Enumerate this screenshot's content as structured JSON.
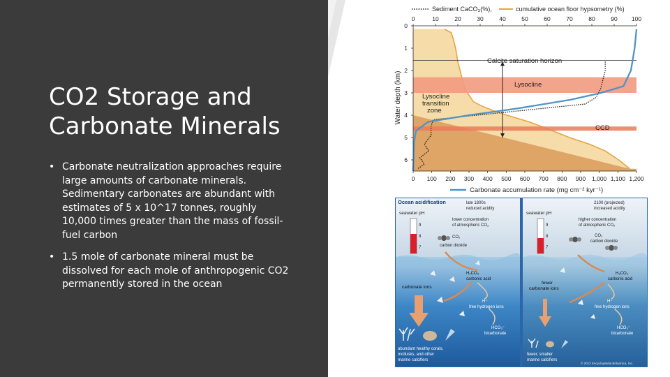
{
  "slide": {
    "title_line1": "CO2 Storage and",
    "title_line2": "Carbonate Minerals",
    "bullets": [
      {
        "marker": "•",
        "text": "Carbonate neutralization approaches require large amounts of carbonate minerals. Sedimentary carbonates are abundant with estimates of 5 x 10^17 tonnes, roughly 10,000 times greater than the mass of fossil-fuel carbon"
      },
      {
        "marker": "•",
        "text": "1.5 mole of carbonate mineral must be dissolved for each mole of anthropogenic CO2 permanently stored in the ocean"
      }
    ]
  },
  "colors": {
    "panel": "#3b3b3b",
    "band": "#e8e8e8",
    "orange_area": "#dfa566",
    "light_area": "#f9e5b5",
    "lysocline": "#f29a80",
    "ccd": "#ec7a5a",
    "blue_line": "#4f94c7"
  },
  "chart_data": {
    "type": "area",
    "legend": {
      "sediment": "Sediment CaCO₃(%),",
      "hypsometry": "cumulative ocean floor hypsometry (%)"
    },
    "top_axis": {
      "ticks": [
        "0",
        "10",
        "20",
        "30",
        "40",
        "50",
        "60",
        "70",
        "80",
        "90",
        "100"
      ]
    },
    "bottom_axis": {
      "ticks": [
        "0",
        "100",
        "200",
        "300",
        "400",
        "500",
        "600",
        "700",
        "800",
        "900",
        "1,000",
        "1,100",
        "1,200"
      ],
      "label": "Carbonate accumulation rate (mg cm⁻² kyr⁻¹)"
    },
    "y_axis": {
      "label": "Water depth (km)",
      "ticks": [
        "0",
        "1",
        "2",
        "3",
        "4",
        "5",
        "6"
      ],
      "range": [
        0,
        6.5
      ]
    },
    "labels": {
      "saturation": "Calcite saturation horizon",
      "lysocline": "Lysocline",
      "transition_1": "Lysocline",
      "transition_2": "transition",
      "transition_3": "zone",
      "ccd": "CCD"
    },
    "zones": {
      "lysocline_km": [
        2.3,
        3.0
      ],
      "ccd_km": 4.6
    },
    "hypsometry_pct": {
      "depth_km": [
        0.15,
        0.3,
        0.6,
        1.0,
        1.3,
        1.6,
        2.0,
        2.4,
        2.8,
        3.1,
        3.4,
        3.6,
        3.8,
        4.0,
        4.3,
        4.6,
        5.0,
        5.3,
        5.6,
        6.0,
        6.4
      ],
      "percent": [
        14,
        17,
        18,
        19,
        19.5,
        20,
        21,
        22,
        23,
        25,
        27,
        31,
        36,
        42,
        52,
        60,
        70,
        79,
        86,
        92,
        97
      ]
    },
    "sediment_caco3_pct": {
      "depth_km": [
        1.6,
        2.0,
        2.8,
        3.2,
        3.5,
        4.2,
        4.5,
        4.6,
        4.9,
        5.3,
        5.6,
        5.9,
        6.2,
        6.4
      ],
      "percent": [
        86,
        86,
        84,
        82,
        77,
        9,
        8,
        8,
        8,
        5,
        7,
        3,
        5,
        2
      ]
    },
    "accumulation_rate": {
      "depth_km": [
        0.15,
        1.0,
        2.0,
        2.7,
        3.0,
        3.3,
        3.7,
        4.0,
        4.3,
        4.7,
        5.2,
        6.0,
        6.5
      ],
      "rate": [
        1200,
        1190,
        1170,
        1130,
        1010,
        850,
        560,
        300,
        80,
        15,
        5,
        2,
        0
      ]
    }
  },
  "ocean_acidification": {
    "title": "Ocean acidification",
    "left": {
      "era_1": "late 1800s",
      "era_2": "reduced acidity",
      "seawater_ph": "seawater pH",
      "conc_1": "lower concentration",
      "conc_2": "of atmospheric CO₂",
      "co2": "CO₂",
      "co2_name": "carbon dioxide",
      "h2co3": "H₂CO₃",
      "h2co3_name": "carbonic acid",
      "carbonate": "carbonate ions",
      "hplus": "H⁺",
      "hplus_name": "free hydrogen ions",
      "hco3": "HCO₃⁻",
      "hco3_name": "bicarbonate",
      "calcifiers_1": "abundant healthy corals,",
      "calcifiers_2": "mollusks, and other",
      "calcifiers_3": "marine calcifiers"
    },
    "right": {
      "era_1": "2100 (projected)",
      "era_2": "increased acidity",
      "seawater_ph": "seawater pH",
      "conc_1": "higher concentration",
      "conc_2": "of atmospheric CO₂",
      "co2": "CO₂",
      "co2_name": "carbon dioxide",
      "h2co3": "H₂CO₃",
      "h2co3_name": "carbonic acid",
      "carbonate_1": "fewer",
      "carbonate_2": "carbonate ions",
      "hplus": "H⁺",
      "hplus_name": "free hydrogen ions",
      "hco3": "HCO₃⁻",
      "hco3_name": "bicarbonate",
      "calcifiers_1": "fewer, smaller",
      "calcifiers_2": "marine calcifiers"
    },
    "ph_ticks": [
      "9",
      "8",
      "7"
    ],
    "copyright": "© 2012 Encyclopædia Britannica, Inc."
  }
}
